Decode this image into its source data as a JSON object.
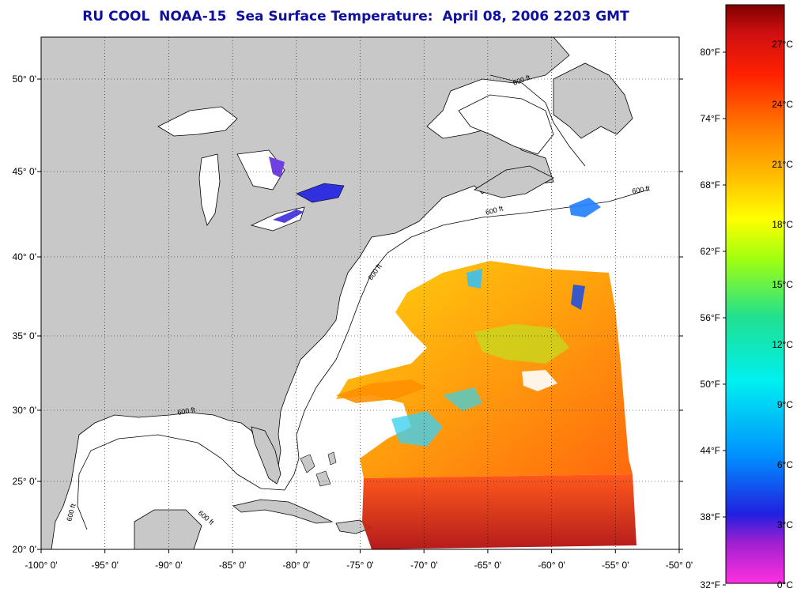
{
  "title": "RU COOL  NOAA-15  Sea Surface Temperature:  April 08, 2006 2203 GMT",
  "map": {
    "lon_labels": [
      "-100° 0'",
      "-95° 0'",
      "-90° 0'",
      "-85° 0'",
      "-80° 0'",
      "-75° 0'",
      "-70° 0'",
      "-65° 0'",
      "-60° 0'",
      "-55° 0'",
      "-50° 0'"
    ],
    "lat_labels": [
      "50° 0'",
      "45° 0'",
      "40° 0'",
      "35° 0'",
      "30° 0'",
      "25° 0'",
      "20° 0'"
    ],
    "contour_label": "600 ft",
    "land_color": "#c8c8c8",
    "water_color": "#ffffff",
    "grid": true
  },
  "colorbar": {
    "fahrenheit_labels": [
      "80°F",
      "74°F",
      "68°F",
      "62°F",
      "56°F",
      "50°F",
      "44°F",
      "38°F",
      "32°F"
    ],
    "celsius_labels": [
      "27°C",
      "24°C",
      "21°C",
      "18°C",
      "15°C",
      "12°C",
      "9°C",
      "6°C",
      "3°C",
      "0°C"
    ],
    "stops": [
      "#ff30e0",
      "#8020c0",
      "#2020e0",
      "#00a0ff",
      "#00f0f0",
      "#20e080",
      "#c0ff00",
      "#ffff00",
      "#ffc000",
      "#ff8000",
      "#ff2000",
      "#d01010",
      "#800000"
    ]
  }
}
